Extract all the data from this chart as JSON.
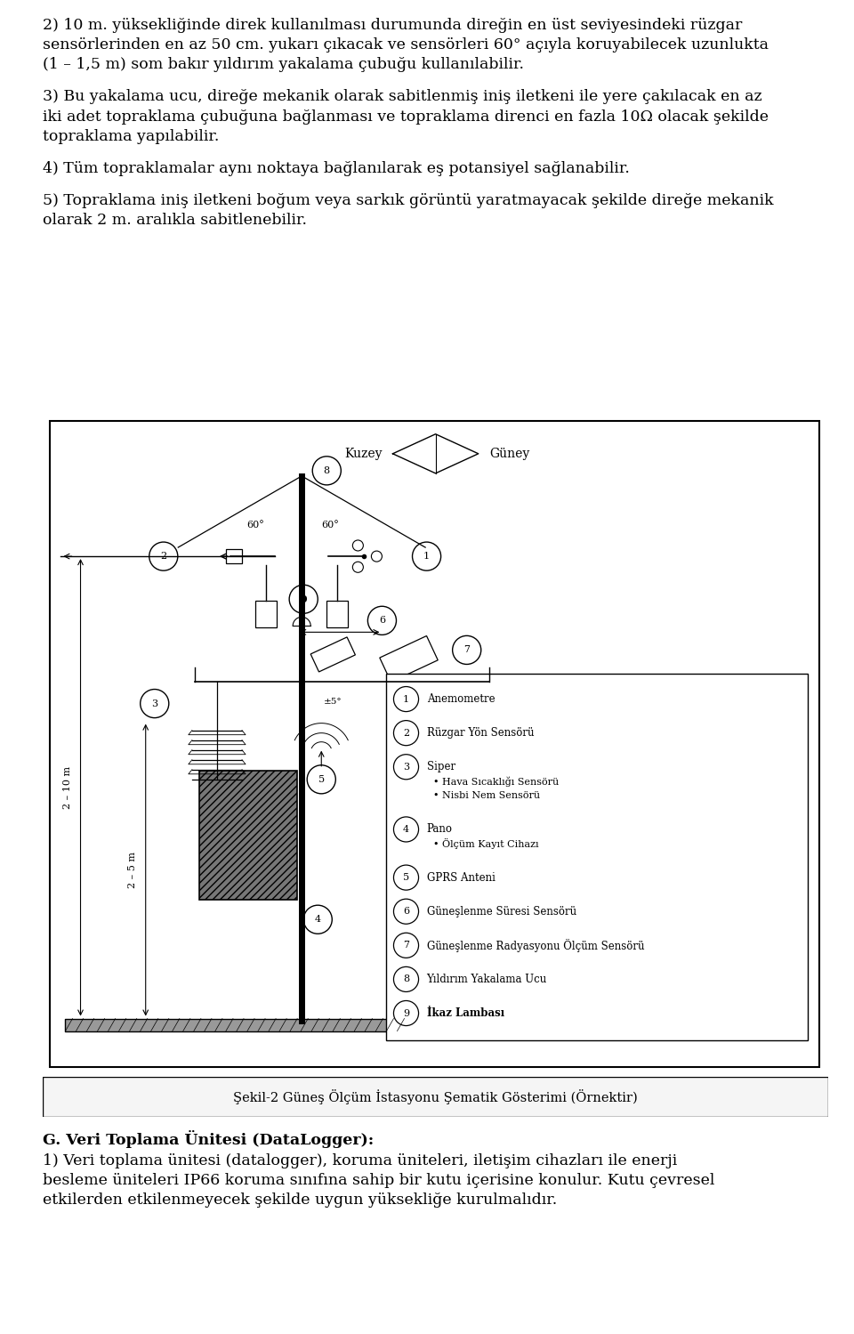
{
  "p1": "2)  10 m. yüksekliğinde direk kullanılması durumunda direğin en üst seviyesindeki rüzgar sensörlerinden en az 50 cm. yukarı çıkacak ve sensörleri 60° açıyla koruyabilecek uzunlukta (1 – 1,5 m) som bakır yıldırım yakalama çubuğu kullanılabilir.",
  "p2": "3) Bu yakalama ucu, direğe mekanik olarak sabitlenmiş iniş iletkeni ile yere çakılacak en az iki adet topraklama çubuğuna bağlanması ve topraklama direnci en fazla 10Ω  olacak şekilde topraklama yapılabilir.",
  "p3": "4) Tüm topraklamalar aynı noktaya bağlanılarak eş potansiyel sağlanabilir.",
  "p4": "5) Topraklama iniş iletkeni boğum veya sarkık görüntü yaratmayacak şekilde direğe mekanik olarak 2 m. aralıkla sabitlenebilir.",
  "caption": "Şekil-2 Güneş Ölçüm İstasyonu Şematik Gösterimi (Örnektir)",
  "footer_title": "G. Veri Toplama Ünitesi (DataLogger):",
  "footer_text": "1) Veri toplama ünitesi (datalogger), koruma üniteleri, iletişim cihazları ile enerji besleme üniteleri IP66 koruma sınıfına sahip bir kutu içerisine konulur. Kutu çevresel etkilerden etkilenmeyecek şekilde uygun yüksekliğe kurulmalıdır.",
  "legend_items": [
    {
      "num": "1",
      "text": "Anemometre",
      "bold": false
    },
    {
      "num": "2",
      "text": "Rüzgar Yön Sensörü",
      "bold": false
    },
    {
      "num": "3",
      "text": "Siper",
      "sub": [
        "Hava Sıcaklığı Sensörü",
        "Nisbi Nem Sensörü"
      ],
      "bold": false
    },
    {
      "num": "4",
      "text": "Pano",
      "sub": [
        "Ölçüm Kayıt Cihazı"
      ],
      "bold": false
    },
    {
      "num": "5",
      "text": "GPRS Anteni",
      "bold": false
    },
    {
      "num": "6",
      "text": "Güneşlenme Süresi Sensörü",
      "bold": false
    },
    {
      "num": "7",
      "text": "Güneşlenme Radyasyonu Ölçüm Sensörü",
      "bold": false
    },
    {
      "num": "8",
      "text": "Yıldırım Yakalama Ucu",
      "bold": false
    },
    {
      "num": "9",
      "text": "İkaz Lambası",
      "bold": true
    }
  ],
  "bg_color": "#ffffff",
  "text_color": "#000000"
}
